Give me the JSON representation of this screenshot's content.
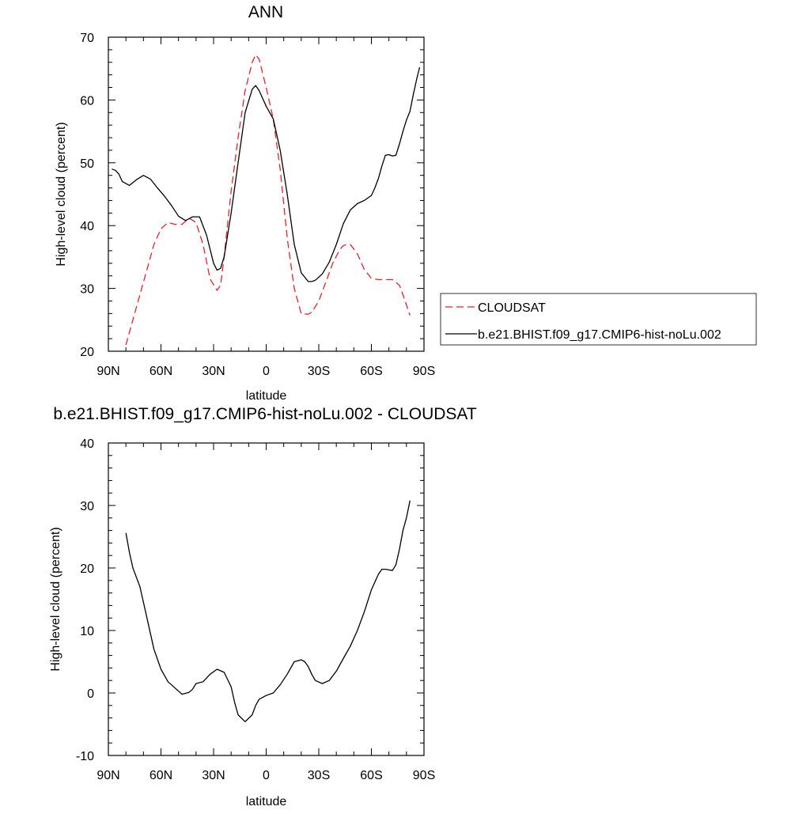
{
  "chart_data": [
    {
      "type": "line",
      "title": "ANN",
      "xlabel": "latitude",
      "ylabel": "High-level cloud (percent)",
      "xlim": [
        90,
        -90
      ],
      "ylim": [
        20,
        70
      ],
      "xticks": [
        90,
        60,
        30,
        0,
        -30,
        -60,
        -90
      ],
      "xtick_labels": [
        "90N",
        "60N",
        "30N",
        "0",
        "30S",
        "60S",
        "90S"
      ],
      "yticks": [
        20,
        30,
        40,
        50,
        60,
        70
      ],
      "ytick_labels": [
        "20",
        "30",
        "40",
        "50",
        "60",
        "70"
      ],
      "legend": "outside-right",
      "series": [
        {
          "name": "CLOUDSAT",
          "color": "#e8202a",
          "dash": "dashed",
          "x": [
            80,
            76,
            72,
            68,
            64,
            60,
            56,
            52,
            48,
            44,
            40,
            36,
            32,
            28,
            26,
            24,
            20,
            16,
            12,
            8,
            6,
            4,
            0,
            -4,
            -8,
            -12,
            -16,
            -20,
            -24,
            -26,
            -30,
            -34,
            -38,
            -42,
            -44,
            -46,
            -48,
            -52,
            -56,
            -60,
            -64,
            -68,
            -72,
            -76,
            -78,
            -82
          ],
          "y": [
            21,
            25,
            29,
            33,
            37,
            39.5,
            40.5,
            40.2,
            40.2,
            41.2,
            40.5,
            37,
            31.5,
            29.7,
            30.5,
            35,
            45.5,
            54,
            61.5,
            66,
            67.2,
            66.5,
            62,
            57,
            49,
            38,
            30,
            26,
            25.9,
            26.2,
            28,
            31,
            34,
            36.2,
            36.8,
            37,
            37,
            35.5,
            33,
            31.6,
            31.4,
            31.4,
            31.4,
            30.5,
            29,
            25.7
          ]
        },
        {
          "name": "b.e21.BHIST.f09_g17.CMIP6-hist-noLu.002",
          "color": "#000000",
          "dash": "solid",
          "x": [
            88,
            86,
            84,
            82,
            78,
            74,
            70,
            66,
            62,
            58,
            54,
            50,
            46,
            42,
            38,
            34,
            30,
            28,
            26,
            24,
            20,
            16,
            12,
            8,
            6,
            4,
            0,
            -4,
            -8,
            -12,
            -16,
            -20,
            -24,
            -26,
            -28,
            -32,
            -36,
            -40,
            -44,
            -48,
            -52,
            -56,
            -60,
            -62,
            -64,
            -66,
            -68,
            -70,
            -72,
            -74,
            -76,
            -78,
            -80,
            -82,
            -84,
            -86,
            -87.5
          ],
          "y": [
            49,
            48.8,
            48.2,
            47,
            46.4,
            47.3,
            48,
            47.4,
            46,
            44.7,
            43.2,
            41.5,
            40.8,
            41.4,
            41.4,
            38.5,
            34,
            32.9,
            33.2,
            35,
            42,
            50,
            58,
            61.7,
            62.3,
            61.5,
            59,
            57,
            52,
            45,
            37,
            32.5,
            31.1,
            31.1,
            31.3,
            32.3,
            34.2,
            37,
            40.3,
            42.5,
            43.5,
            44,
            44.8,
            46,
            47.5,
            49.5,
            51.2,
            51.3,
            51.1,
            51.2,
            53,
            55,
            56.8,
            58.2,
            61,
            63.5,
            65.2
          ]
        }
      ]
    },
    {
      "type": "line",
      "title": "b.e21.BHIST.f09_g17.CMIP6-hist-noLu.002 - CLOUDSAT",
      "xlabel": "latitude",
      "ylabel": "High-level cloud (percent)",
      "xlim": [
        90,
        -90
      ],
      "ylim": [
        -10,
        40
      ],
      "xticks": [
        90,
        60,
        30,
        0,
        -30,
        -60,
        -90
      ],
      "xtick_labels": [
        "90N",
        "60N",
        "30N",
        "0",
        "30S",
        "60S",
        "90S"
      ],
      "yticks": [
        -10,
        0,
        10,
        20,
        30,
        40
      ],
      "ytick_labels": [
        "-10",
        "0",
        "10",
        "20",
        "30",
        "40"
      ],
      "series": [
        {
          "color": "#000000",
          "dash": "solid",
          "x": [
            80,
            78,
            76,
            72,
            68,
            64,
            60,
            56,
            52,
            48,
            44,
            42,
            40,
            36,
            32,
            28,
            24,
            20,
            18,
            16,
            12,
            8,
            6,
            4,
            0,
            -4,
            -8,
            -12,
            -16,
            -20,
            -22,
            -24,
            -26,
            -28,
            -32,
            -36,
            -40,
            -44,
            -48,
            -52,
            -56,
            -60,
            -64,
            -66,
            -68,
            -70,
            -72,
            -74,
            -76,
            -78,
            -80,
            -82
          ],
          "y": [
            25.6,
            22.5,
            20,
            17,
            12,
            7,
            3.8,
            1.8,
            0.8,
            -0.2,
            0.1,
            0.6,
            1.5,
            1.8,
            3,
            3.8,
            3.3,
            1,
            -1.5,
            -3.5,
            -4.6,
            -3.5,
            -2,
            -1,
            -0.4,
            0,
            1.3,
            3,
            5,
            5.3,
            5,
            4.2,
            3,
            2,
            1.5,
            2,
            3.5,
            5.5,
            7.5,
            10,
            13,
            16.5,
            19,
            19.8,
            19.8,
            19.7,
            19.6,
            20.5,
            23,
            26,
            28,
            30.8
          ]
        }
      ]
    }
  ]
}
